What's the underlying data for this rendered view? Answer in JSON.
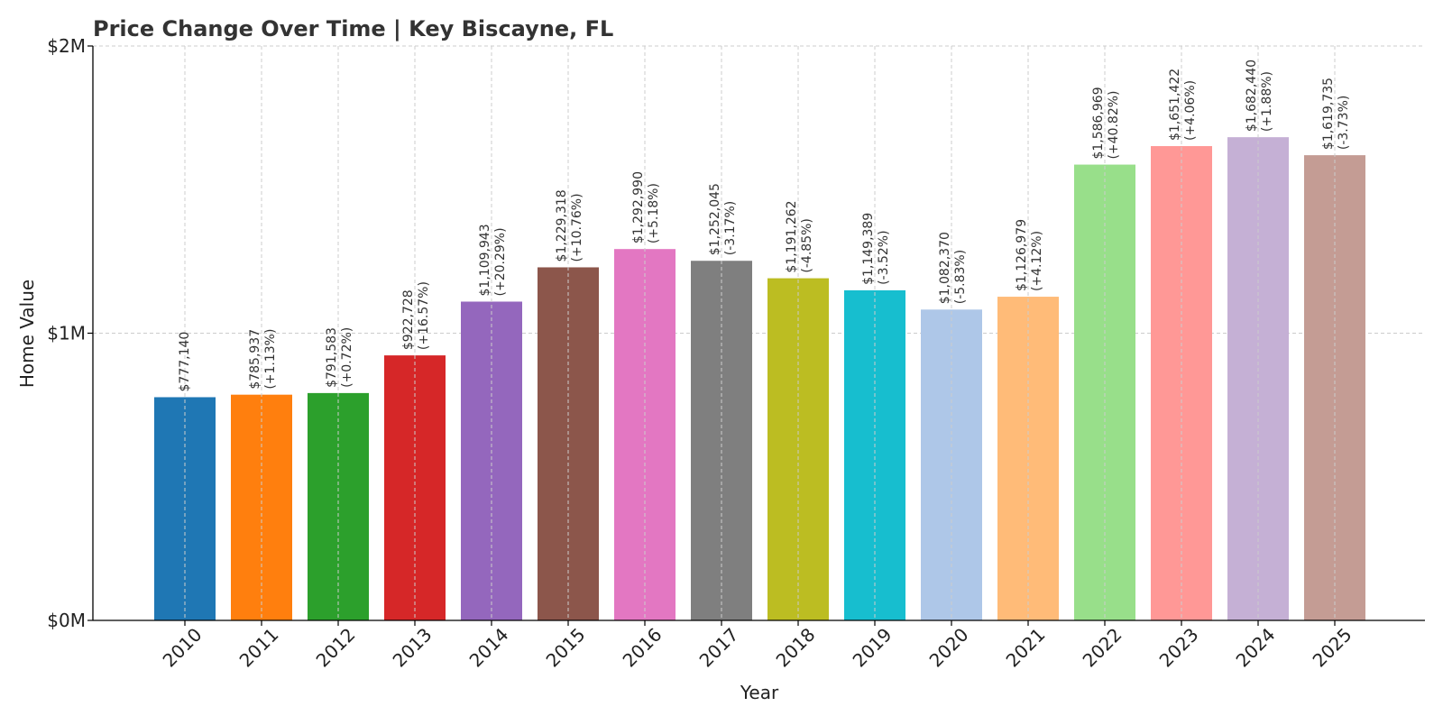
{
  "chart_data": {
    "type": "bar",
    "title": "Price Change Over Time | Key Biscayne, FL",
    "xlabel": "Year",
    "ylabel": "Home Value",
    "ylim": [
      0,
      2000000
    ],
    "yticks": [
      {
        "value": 0,
        "label": "$0M"
      },
      {
        "value": 1000000,
        "label": "$1M"
      },
      {
        "value": 2000000,
        "label": "$2M"
      }
    ],
    "grid": true,
    "categories": [
      "2010",
      "2011",
      "2012",
      "2013",
      "2014",
      "2015",
      "2016",
      "2017",
      "2018",
      "2019",
      "2020",
      "2021",
      "2022",
      "2023",
      "2024",
      "2025"
    ],
    "values": [
      777140,
      785937,
      791583,
      922728,
      1109943,
      1229318,
      1292990,
      1252045,
      1191262,
      1149389,
      1082370,
      1126979,
      1586969,
      1651422,
      1682440,
      1619735
    ],
    "value_labels": [
      "$777,140",
      "$785,937",
      "$791,583",
      "$922,728",
      "$1,109,943",
      "$1,229,318",
      "$1,292,990",
      "$1,252,045",
      "$1,191,262",
      "$1,149,389",
      "$1,082,370",
      "$1,126,979",
      "$1,586,969",
      "$1,651,422",
      "$1,682,440",
      "$1,619,735"
    ],
    "change_labels": [
      "",
      "(+1.13%)",
      "(+0.72%)",
      "(+16.57%)",
      "(+20.29%)",
      "(+10.76%)",
      "(+5.18%)",
      "(-3.17%)",
      "(-4.85%)",
      "(-3.52%)",
      "(-5.83%)",
      "(+4.12%)",
      "(+40.82%)",
      "(+4.06%)",
      "(+1.88%)",
      "(-3.73%)"
    ],
    "colors": [
      "#1f77b4",
      "#ff7f0e",
      "#2ca02c",
      "#d62728",
      "#9467bd",
      "#8c564b",
      "#e377c2",
      "#7f7f7f",
      "#bcbd22",
      "#17becf",
      "#aec7e8",
      "#ffbb78",
      "#98df8a",
      "#ff9896",
      "#c5b0d5",
      "#c49c94"
    ]
  }
}
